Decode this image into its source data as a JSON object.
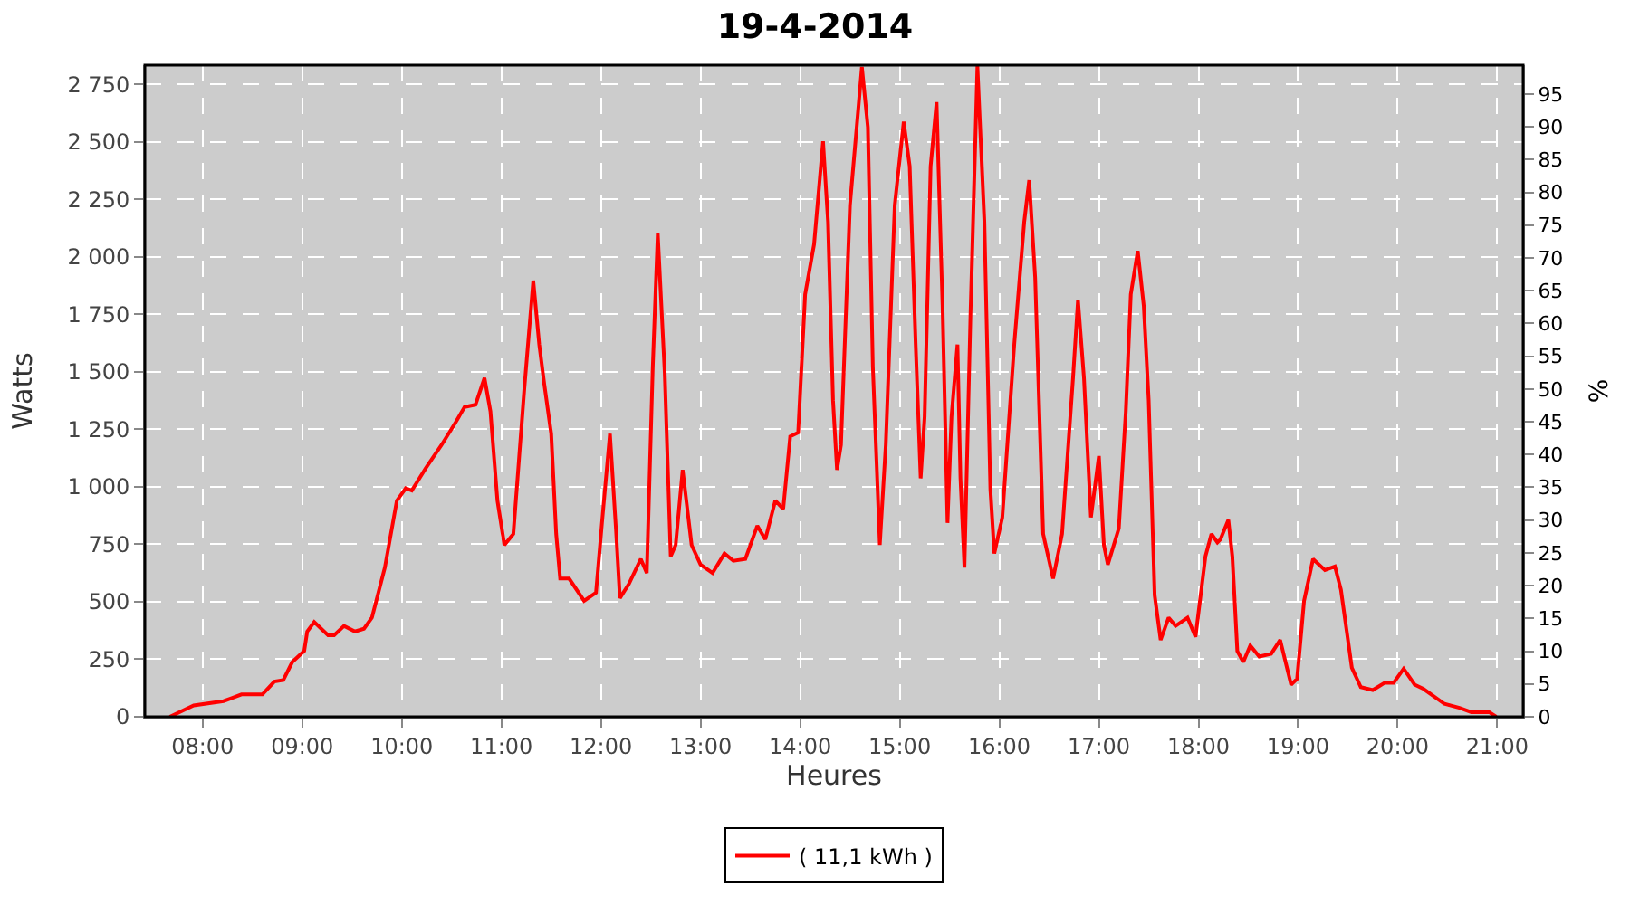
{
  "chart_data": {
    "type": "line",
    "title": "19-4-2014",
    "xlabel": "Heures",
    "ylabel": "Watts",
    "y2label": "%",
    "xlim": [
      7.42,
      21.26
    ],
    "xticks": [
      {
        "value": 8,
        "label": "08:00"
      },
      {
        "value": 9,
        "label": "09:00"
      },
      {
        "value": 10,
        "label": "10:00"
      },
      {
        "value": 11,
        "label": "11:00"
      },
      {
        "value": 12,
        "label": "12:00"
      },
      {
        "value": 13,
        "label": "13:00"
      },
      {
        "value": 14,
        "label": "14:00"
      },
      {
        "value": 15,
        "label": "15:00"
      },
      {
        "value": 16,
        "label": "16:00"
      },
      {
        "value": 17,
        "label": "17:00"
      },
      {
        "value": 18,
        "label": "18:00"
      },
      {
        "value": 19,
        "label": "19:00"
      },
      {
        "value": 20,
        "label": "20:00"
      },
      {
        "value": 21,
        "label": "21:00"
      }
    ],
    "ylim": [
      0,
      2834
    ],
    "yticks": [
      0,
      250,
      500,
      750,
      {
        "value": 1000,
        "label": "1 000"
      },
      {
        "value": 1250,
        "label": "1 250"
      },
      {
        "value": 1500,
        "label": "1 500"
      },
      {
        "value": 1750,
        "label": "1 750"
      },
      {
        "value": 2000,
        "label": "2 000"
      },
      {
        "value": 2250,
        "label": "2 250"
      },
      {
        "value": 2500,
        "label": "2 500"
      },
      {
        "value": 2750,
        "label": "2 750"
      }
    ],
    "y2lim": [
      0,
      99.4
    ],
    "y2ticks": [
      0,
      5,
      10,
      15,
      20,
      25,
      30,
      35,
      40,
      45,
      50,
      55,
      60,
      65,
      70,
      75,
      80,
      85,
      90,
      95
    ],
    "grid": true,
    "legend": "bottom",
    "marker": "none",
    "line_style": "solid",
    "series": [
      {
        "name": "( 11,1 kWh )",
        "color": "#ff0000",
        "x": [
          7.67,
          7.91,
          8.21,
          8.39,
          8.6,
          8.72,
          8.81,
          8.9,
          9.02,
          9.05,
          9.12,
          9.26,
          9.32,
          9.42,
          9.53,
          9.62,
          9.7,
          9.83,
          9.95,
          10.04,
          10.1,
          10.24,
          10.4,
          10.54,
          10.63,
          10.74,
          10.83,
          10.89,
          10.96,
          11.03,
          11.12,
          11.23,
          11.32,
          11.38,
          11.43,
          11.5,
          11.55,
          11.59,
          11.68,
          11.83,
          11.95,
          12.01,
          12.09,
          12.15,
          12.19,
          12.28,
          12.4,
          12.46,
          12.52,
          12.57,
          12.64,
          12.7,
          12.75,
          12.82,
          12.91,
          13.0,
          13.12,
          13.24,
          13.33,
          13.45,
          13.57,
          13.65,
          13.75,
          13.83,
          13.9,
          13.98,
          14.05,
          14.14,
          14.23,
          14.28,
          14.33,
          14.37,
          14.41,
          14.5,
          14.62,
          14.68,
          14.73,
          14.8,
          14.86,
          14.95,
          15.04,
          15.1,
          15.16,
          15.21,
          15.25,
          15.31,
          15.37,
          15.43,
          15.48,
          15.52,
          15.58,
          15.61,
          15.65,
          15.71,
          15.78,
          15.85,
          15.91,
          15.95,
          16.03,
          16.15,
          16.25,
          16.3,
          16.36,
          16.44,
          16.54,
          16.63,
          16.74,
          16.79,
          16.85,
          16.92,
          17.0,
          17.05,
          17.09,
          17.2,
          17.27,
          17.32,
          17.39,
          17.45,
          17.5,
          17.56,
          17.62,
          17.7,
          17.77,
          17.89,
          17.97,
          18.07,
          18.13,
          18.19,
          18.22,
          18.3,
          18.34,
          18.39,
          18.45,
          18.52,
          18.61,
          18.73,
          18.82,
          18.93,
          18.99,
          19.06,
          19.15,
          19.27,
          19.37,
          19.43,
          19.54,
          19.63,
          19.75,
          19.87,
          19.96,
          20.06,
          20.17,
          20.26,
          20.47,
          20.62,
          20.74,
          20.92,
          20.99
        ],
        "values": [
          0,
          49,
          68,
          97,
          97,
          153,
          160,
          238,
          286,
          371,
          412,
          354,
          354,
          395,
          371,
          383,
          431,
          649,
          940,
          994,
          984,
          1081,
          1183,
          1280,
          1347,
          1357,
          1474,
          1328,
          940,
          747,
          795,
          1425,
          1897,
          1619,
          1449,
          1231,
          795,
          601,
          601,
          504,
          540,
          843,
          1231,
          819,
          516,
          577,
          686,
          625,
          1522,
          2103,
          1498,
          698,
          747,
          1074,
          747,
          662,
          625,
          710,
          678,
          686,
          831,
          771,
          940,
          904,
          1219,
          1236,
          1837,
          2055,
          2503,
          2152,
          1376,
          1074,
          1183,
          2225,
          2826,
          2564,
          1522,
          747,
          1183,
          2225,
          2588,
          2394,
          1619,
          1037,
          1304,
          2394,
          2673,
          1788,
          843,
          1304,
          1619,
          1037,
          649,
          1740,
          2830,
          2152,
          989,
          710,
          867,
          1619,
          2152,
          2334,
          1910,
          795,
          601,
          795,
          1474,
          1813,
          1474,
          867,
          1134,
          747,
          662,
          819,
          1328,
          1837,
          2026,
          1788,
          1376,
          528,
          334,
          431,
          395,
          431,
          347,
          698,
          795,
          758,
          771,
          856,
          698,
          286,
          238,
          310,
          262,
          274,
          334,
          140,
          165,
          504,
          686,
          638,
          654,
          553,
          213,
          129,
          116,
          148,
          148,
          209,
          140,
          121,
          56,
          39,
          20,
          20,
          0
        ]
      }
    ]
  }
}
